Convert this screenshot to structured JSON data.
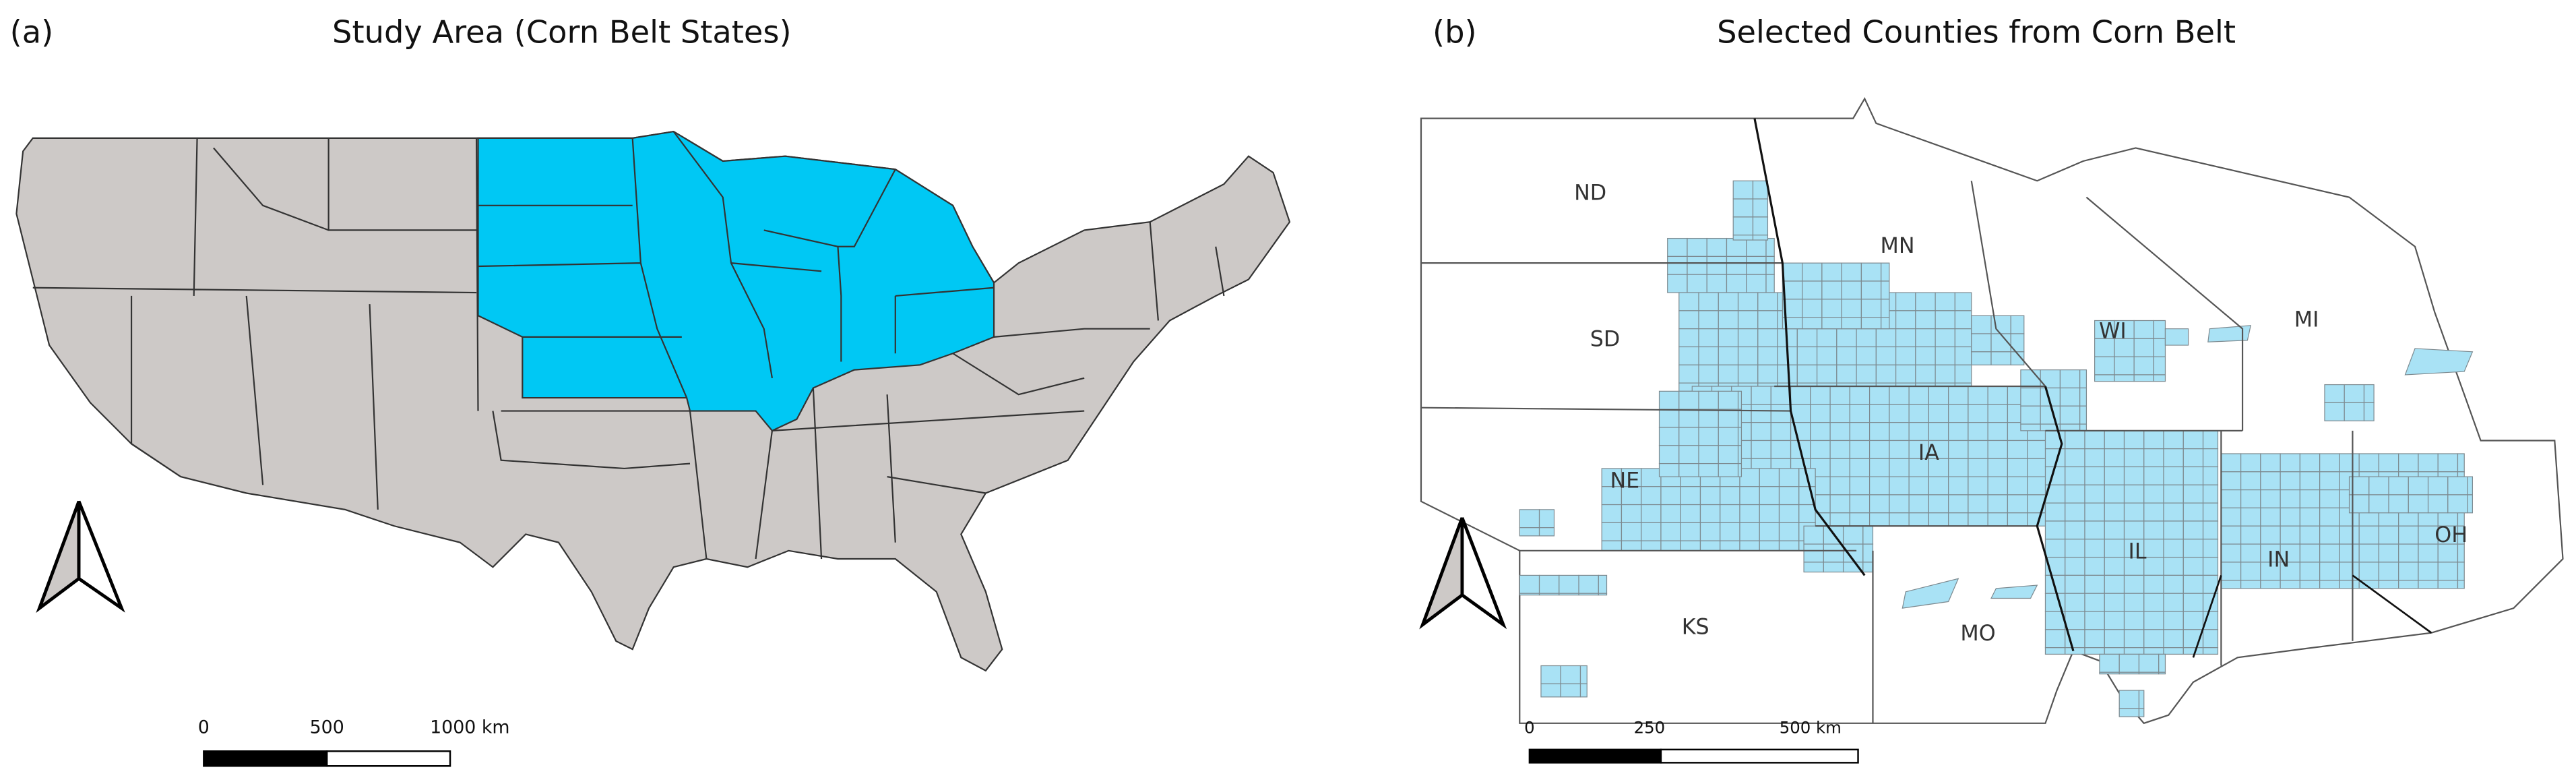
{
  "panels": [
    {
      "label": "(a)",
      "title": "Study Area (Corn Belt States)",
      "scale_bar": [
        "0",
        "500",
        "1000 km"
      ]
    },
    {
      "label": "(b)",
      "title": "Selected Counties from Corn Belt",
      "state_labels": [
        "ND",
        "MN",
        "SD",
        "WI",
        "MI",
        "NE",
        "IA",
        "IL",
        "IN",
        "OH",
        "KS",
        "MO"
      ],
      "scale_bar": [
        "0",
        "250",
        "500 km"
      ]
    }
  ]
}
